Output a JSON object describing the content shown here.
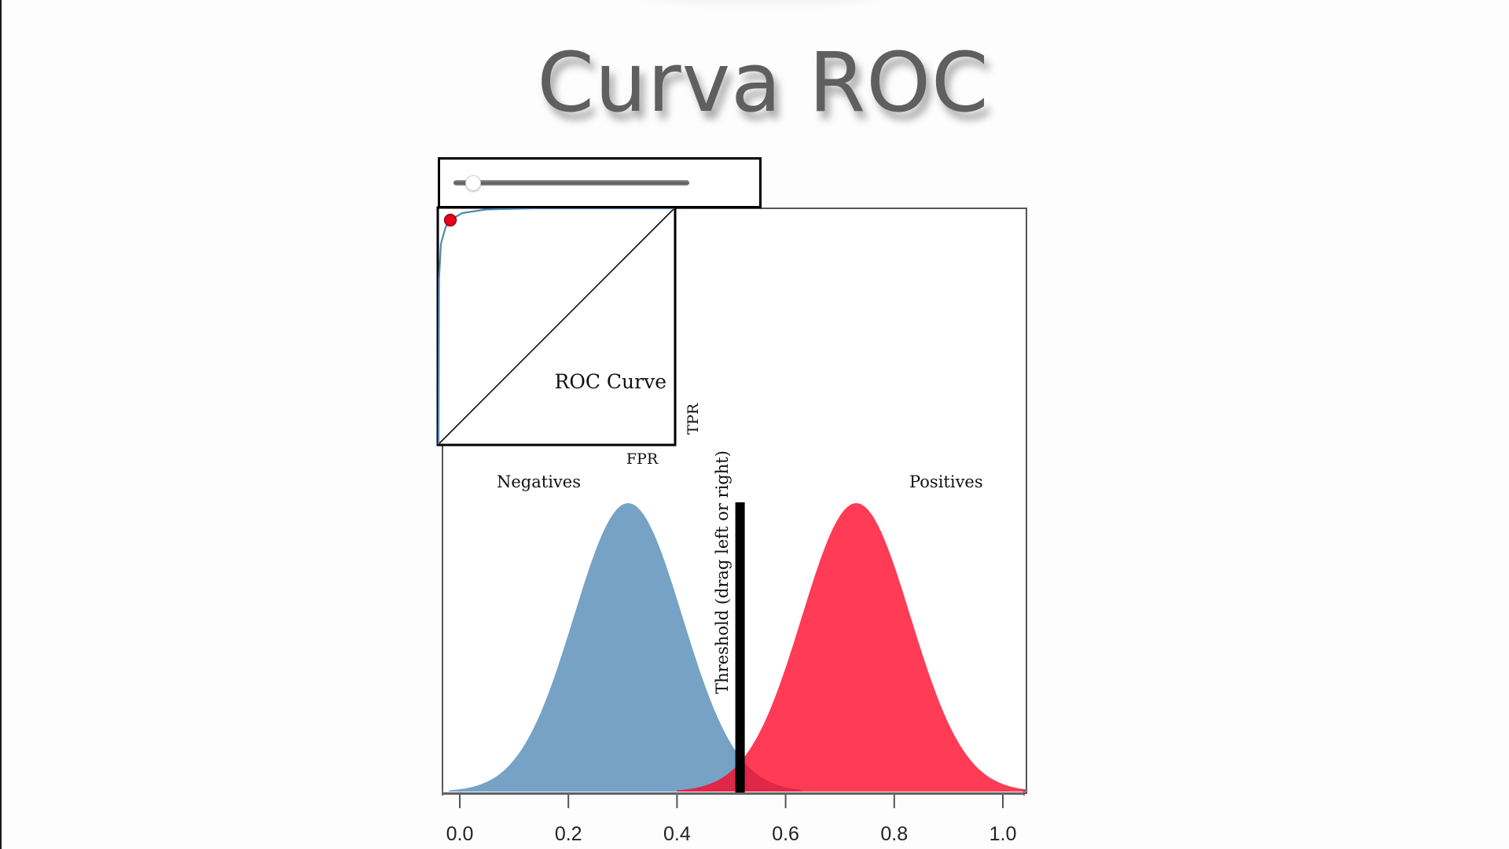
{
  "slide": {
    "title": "Curva ROC"
  },
  "slider": {
    "value": 0.08,
    "min": 0,
    "max": 1
  },
  "roc_panel": {
    "title": "ROC Curve",
    "xlabel": "FPR",
    "ylabel": "TPR",
    "point": {
      "fpr": 0.05,
      "tpr": 0.95
    },
    "curve_color": "#4f86b5",
    "point_color": "#e8001c"
  },
  "distribution_panel": {
    "negatives_label": "Negatives",
    "positives_label": "Positives",
    "threshold_label": "Threshold (drag left or right)",
    "threshold": 0.516,
    "negatives_color": "#76a2c6",
    "positives_color": "#ff3b55",
    "overlap_color": "#df2748"
  },
  "chart_data": [
    {
      "type": "area",
      "title": "",
      "xlabel": "",
      "ylabel": "",
      "x_ticks": [
        "0.0",
        "0.2",
        "0.4",
        "0.6",
        "0.8",
        "1.0"
      ],
      "xlim": [
        -0.02,
        1.045
      ],
      "grid": false,
      "series": [
        {
          "name": "Negatives",
          "distribution": "normal",
          "mean": 0.31,
          "sd": 0.1,
          "color": "#76a2c6"
        },
        {
          "name": "Positives",
          "distribution": "normal",
          "mean": 0.73,
          "sd": 0.1,
          "color": "#ff3b55"
        }
      ],
      "annotations": [
        {
          "type": "vline",
          "x": 0.516,
          "label": "Threshold (drag left or right)"
        }
      ]
    },
    {
      "type": "line",
      "title": "ROC Curve",
      "xlabel": "FPR",
      "ylabel": "TPR",
      "xlim": [
        0,
        1
      ],
      "ylim": [
        0,
        1
      ],
      "series": [
        {
          "name": "ROC",
          "x": [
            0,
            0.002,
            0.01,
            0.03,
            0.05,
            0.1,
            0.2,
            0.4,
            0.7,
            1.0
          ],
          "y": [
            0,
            0.7,
            0.85,
            0.92,
            0.95,
            0.98,
            0.995,
            1.0,
            1.0,
            1.0
          ]
        },
        {
          "name": "Chance",
          "x": [
            0,
            1
          ],
          "y": [
            0,
            1
          ]
        }
      ],
      "marker": {
        "fpr": 0.05,
        "tpr": 0.95
      }
    }
  ]
}
